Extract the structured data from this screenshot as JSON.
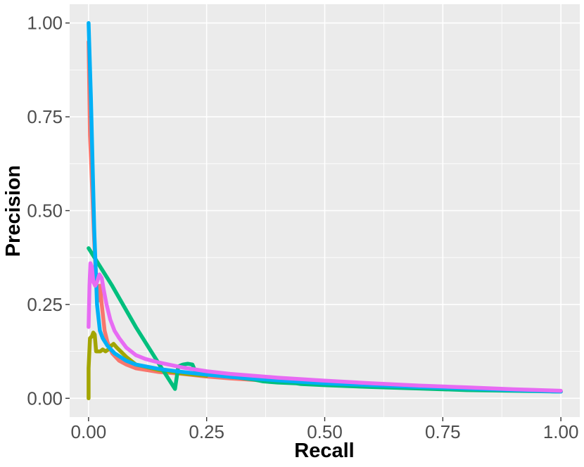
{
  "chart_data": {
    "type": "line",
    "title": "",
    "xlabel": "Recall",
    "ylabel": "Precision",
    "xlim": [
      -0.04,
      1.04
    ],
    "ylim": [
      -0.05,
      1.05
    ],
    "x_ticks": [
      0,
      0.25,
      0.5,
      0.75,
      1
    ],
    "x_tick_labels": [
      "0.00",
      "0.25",
      "0.50",
      "0.75",
      "1.00"
    ],
    "y_ticks": [
      0,
      0.25,
      0.5,
      0.75,
      1
    ],
    "y_tick_labels": [
      "0.00",
      "0.25",
      "0.50",
      "0.75",
      "1.00"
    ],
    "grid": true,
    "legend": "none",
    "colors": {
      "panel_background": "#ebebeb",
      "grid": "#ffffff"
    },
    "series": [
      {
        "color": "#f8766d",
        "points": [
          [
            0.0,
            0.95
          ],
          [
            0.003,
            0.7
          ],
          [
            0.008,
            0.55
          ],
          [
            0.012,
            0.42
          ],
          [
            0.016,
            0.32
          ],
          [
            0.02,
            0.26
          ],
          [
            0.024,
            0.3
          ],
          [
            0.028,
            0.25
          ],
          [
            0.034,
            0.18
          ],
          [
            0.04,
            0.15
          ],
          [
            0.05,
            0.12
          ],
          [
            0.065,
            0.1
          ],
          [
            0.08,
            0.09
          ],
          [
            0.1,
            0.08
          ],
          [
            0.15,
            0.07
          ],
          [
            0.2,
            0.065
          ],
          [
            0.25,
            0.058
          ],
          [
            0.3,
            0.053
          ],
          [
            0.4,
            0.045
          ],
          [
            0.5,
            0.038
          ],
          [
            0.6,
            0.033
          ],
          [
            0.7,
            0.029
          ],
          [
            0.8,
            0.025
          ],
          [
            0.9,
            0.022
          ],
          [
            1.0,
            0.018
          ]
        ]
      },
      {
        "color": "#a3a500",
        "points": [
          [
            0.0,
            0.0
          ],
          [
            0.0,
            0.08
          ],
          [
            0.003,
            0.16
          ],
          [
            0.007,
            0.165
          ],
          [
            0.01,
            0.175
          ],
          [
            0.013,
            0.17
          ],
          [
            0.016,
            0.125
          ],
          [
            0.02,
            0.125
          ],
          [
            0.025,
            0.125
          ],
          [
            0.03,
            0.13
          ],
          [
            0.036,
            0.125
          ],
          [
            0.042,
            0.13
          ],
          [
            0.048,
            0.14
          ],
          [
            0.053,
            0.145
          ],
          [
            0.06,
            0.135
          ],
          [
            0.068,
            0.125
          ],
          [
            0.08,
            0.11
          ],
          [
            0.1,
            0.09
          ],
          [
            0.15,
            0.075
          ],
          [
            0.2,
            0.066
          ],
          [
            0.25,
            0.06
          ]
        ]
      },
      {
        "color": "#00bf7d",
        "points": [
          [
            0.0,
            0.4
          ],
          [
            0.05,
            0.3
          ],
          [
            0.1,
            0.19
          ],
          [
            0.15,
            0.09
          ],
          [
            0.183,
            0.025
          ],
          [
            0.19,
            0.085
          ],
          [
            0.2,
            0.09
          ],
          [
            0.21,
            0.092
          ],
          [
            0.22,
            0.09
          ],
          [
            0.225,
            0.075
          ],
          [
            0.25,
            0.065
          ],
          [
            0.3,
            0.058
          ],
          [
            0.35,
            0.05
          ],
          [
            0.37,
            0.045
          ],
          [
            0.4,
            0.042
          ],
          [
            0.44,
            0.04
          ],
          [
            0.45,
            0.038
          ],
          [
            0.5,
            0.035
          ],
          [
            0.6,
            0.03
          ],
          [
            0.7,
            0.026
          ],
          [
            0.8,
            0.022
          ],
          [
            0.9,
            0.02
          ],
          [
            1.0,
            0.018
          ]
        ]
      },
      {
        "color": "#00b0f6",
        "points": [
          [
            0.0,
            1.0
          ],
          [
            0.005,
            0.8
          ],
          [
            0.012,
            0.45
          ],
          [
            0.018,
            0.25
          ],
          [
            0.024,
            0.18
          ],
          [
            0.03,
            0.16
          ],
          [
            0.04,
            0.14
          ],
          [
            0.055,
            0.12
          ],
          [
            0.08,
            0.1
          ],
          [
            0.1,
            0.09
          ],
          [
            0.15,
            0.078
          ],
          [
            0.2,
            0.07
          ],
          [
            0.25,
            0.063
          ],
          [
            0.3,
            0.057
          ],
          [
            0.4,
            0.048
          ],
          [
            0.5,
            0.04
          ],
          [
            0.6,
            0.035
          ],
          [
            0.7,
            0.03
          ],
          [
            0.8,
            0.026
          ],
          [
            0.9,
            0.022
          ],
          [
            1.0,
            0.018
          ]
        ]
      },
      {
        "color": "#e76bf3",
        "points": [
          [
            0.0,
            0.19
          ],
          [
            0.002,
            0.3
          ],
          [
            0.004,
            0.36
          ],
          [
            0.007,
            0.35
          ],
          [
            0.01,
            0.31
          ],
          [
            0.014,
            0.3
          ],
          [
            0.018,
            0.31
          ],
          [
            0.023,
            0.33
          ],
          [
            0.028,
            0.32
          ],
          [
            0.032,
            0.29
          ],
          [
            0.038,
            0.25
          ],
          [
            0.046,
            0.21
          ],
          [
            0.055,
            0.18
          ],
          [
            0.065,
            0.16
          ],
          [
            0.08,
            0.135
          ],
          [
            0.1,
            0.115
          ],
          [
            0.12,
            0.105
          ],
          [
            0.15,
            0.095
          ],
          [
            0.2,
            0.082
          ],
          [
            0.25,
            0.072
          ],
          [
            0.3,
            0.065
          ],
          [
            0.4,
            0.055
          ],
          [
            0.5,
            0.047
          ],
          [
            0.6,
            0.04
          ],
          [
            0.7,
            0.034
          ],
          [
            0.8,
            0.029
          ],
          [
            0.9,
            0.024
          ],
          [
            1.0,
            0.02
          ]
        ]
      }
    ]
  }
}
